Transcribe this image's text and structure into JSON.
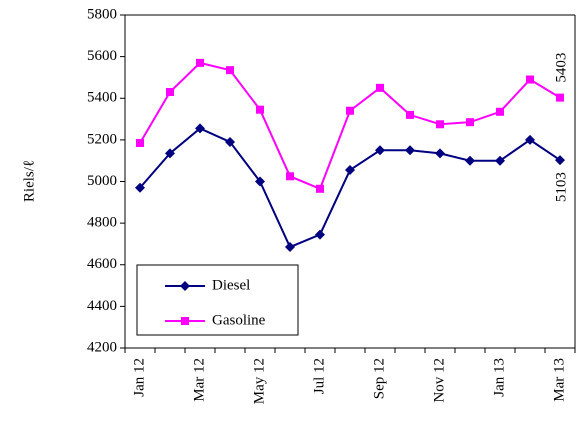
{
  "chart_data": {
    "type": "line",
    "y_label": "Riels/ℓ",
    "categories": [
      "Jan 12",
      null,
      "Mar 12",
      null,
      "May 12",
      null,
      "Jul 12",
      null,
      "Sep 12",
      null,
      "Nov 12",
      null,
      "Jan 13",
      null,
      "Mar 13"
    ],
    "series": [
      {
        "name": "Diesel",
        "color": "#000080",
        "marker": "diamond",
        "values": [
          4970,
          5135,
          5255,
          5190,
          5000,
          4685,
          4745,
          5055,
          5150,
          5150,
          5135,
          5100,
          5100,
          5200,
          5103
        ]
      },
      {
        "name": "Gasoline",
        "color": "#ff00ff",
        "marker": "square",
        "values": [
          5185,
          5430,
          5570,
          5535,
          5345,
          5025,
          4965,
          5340,
          5450,
          5320,
          5275,
          5285,
          5335,
          5490,
          5403
        ]
      }
    ],
    "ylim": [
      4200,
      5800
    ],
    "yticks": [
      4200,
      4400,
      4600,
      4800,
      5000,
      5200,
      5400,
      5600,
      5800
    ],
    "legend": "lower left"
  }
}
